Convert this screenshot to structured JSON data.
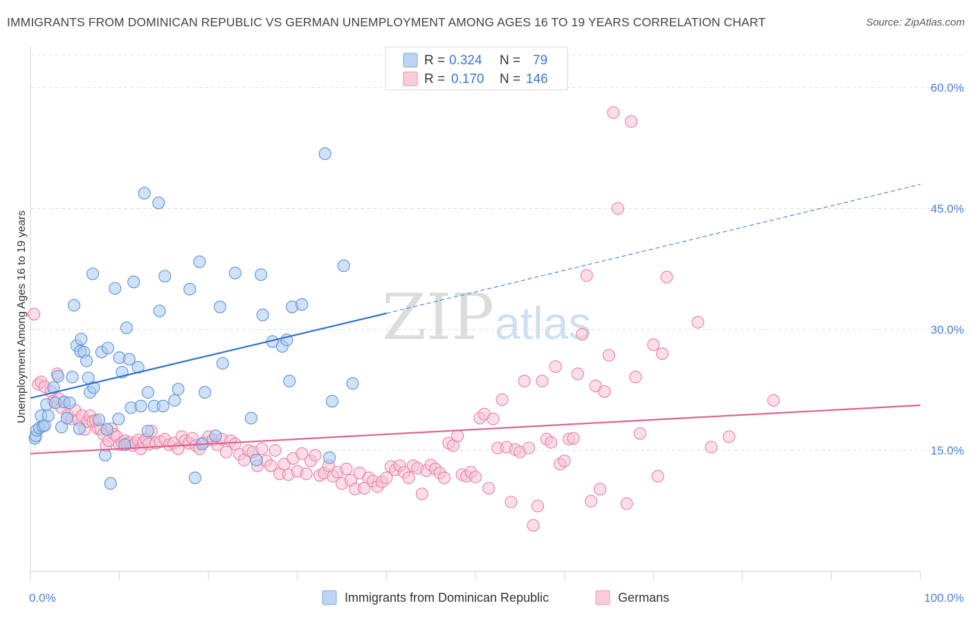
{
  "title": "IMMIGRANTS FROM DOMINICAN REPUBLIC VS GERMAN UNEMPLOYMENT AMONG AGES 16 TO 19 YEARS CORRELATION CHART",
  "source": "Source: ZipAtlas.com",
  "watermark": {
    "zip": "ZIP",
    "atlas": "atlas"
  },
  "legend": {
    "rows": [
      {
        "r_label": "R =",
        "r_value": "0.324",
        "n_label": "N =",
        "n_value": "79",
        "color": "#a9c8f0"
      },
      {
        "r_label": "R =",
        "r_value": "0.170",
        "n_label": "N =",
        "n_value": "146",
        "color": "#f6b8cb"
      }
    ]
  },
  "chart_data": {
    "type": "scatter",
    "title": "IMMIGRANTS FROM DOMINICAN REPUBLIC VS GERMAN UNEMPLOYMENT AMONG AGES 16 TO 19 YEARS CORRELATION CHART",
    "xlabel": "",
    "ylabel": "Unemployment Among Ages 16 to 19 years",
    "xlim": [
      0,
      100
    ],
    "ylim": [
      0,
      64
    ],
    "x_tick_labels": [
      "0.0%",
      "100.0%"
    ],
    "y_ticks": [
      15,
      30,
      45,
      60
    ],
    "y_tick_labels": [
      "15.0%",
      "30.0%",
      "45.0%",
      "60.0%"
    ],
    "grid": "horizontal dashed",
    "legend_position": "top-center",
    "series": [
      {
        "name": "Immigrants from Dominican Republic",
        "color": "#5b8fd8",
        "fill": "#aacbf2",
        "R": 0.324,
        "N": 79,
        "trend": {
          "x0": 0,
          "y0": 21.5,
          "x1": 40,
          "y1": 32.0,
          "dashed_to_x": 100,
          "dashed_to_y": 48.0,
          "color": "#2f6fcf"
        },
        "points": [
          [
            0.5,
            16.5
          ],
          [
            0.6,
            16.8
          ],
          [
            0.7,
            17.5
          ],
          [
            1.0,
            17.8
          ],
          [
            1.2,
            19.3
          ],
          [
            1.4,
            18.0
          ],
          [
            1.6,
            18.1
          ],
          [
            1.8,
            20.7
          ],
          [
            2.0,
            19.3
          ],
          [
            2.6,
            22.8
          ],
          [
            2.8,
            20.9
          ],
          [
            3.1,
            24.2
          ],
          [
            3.5,
            17.9
          ],
          [
            3.8,
            21.0
          ],
          [
            4.1,
            19.0
          ],
          [
            4.4,
            20.9
          ],
          [
            4.7,
            24.1
          ],
          [
            4.9,
            33.0
          ],
          [
            5.2,
            28.0
          ],
          [
            5.5,
            17.7
          ],
          [
            5.6,
            27.3
          ],
          [
            5.7,
            28.8
          ],
          [
            6.0,
            27.2
          ],
          [
            6.3,
            26.1
          ],
          [
            6.5,
            24.0
          ],
          [
            6.7,
            22.2
          ],
          [
            7.1,
            22.8
          ],
          [
            7.0,
            36.9
          ],
          [
            7.7,
            18.8
          ],
          [
            8.0,
            27.2
          ],
          [
            8.4,
            14.4
          ],
          [
            8.7,
            27.7
          ],
          [
            8.6,
            17.6
          ],
          [
            9.0,
            10.9
          ],
          [
            9.5,
            35.1
          ],
          [
            9.9,
            18.9
          ],
          [
            10.0,
            26.5
          ],
          [
            10.3,
            24.7
          ],
          [
            10.6,
            15.7
          ],
          [
            10.8,
            30.2
          ],
          [
            11.1,
            26.3
          ],
          [
            11.3,
            20.3
          ],
          [
            11.6,
            35.9
          ],
          [
            12.1,
            25.3
          ],
          [
            12.4,
            20.5
          ],
          [
            12.8,
            46.9
          ],
          [
            13.2,
            17.4
          ],
          [
            13.2,
            22.2
          ],
          [
            13.9,
            20.5
          ],
          [
            14.4,
            45.7
          ],
          [
            14.5,
            32.3
          ],
          [
            14.9,
            20.5
          ],
          [
            15.1,
            36.6
          ],
          [
            16.2,
            21.2
          ],
          [
            16.6,
            22.6
          ],
          [
            17.9,
            35.0
          ],
          [
            18.5,
            11.6
          ],
          [
            19.0,
            38.4
          ],
          [
            19.3,
            15.8
          ],
          [
            19.6,
            22.2
          ],
          [
            20.8,
            16.8
          ],
          [
            21.3,
            32.8
          ],
          [
            21.6,
            25.8
          ],
          [
            23.0,
            37.0
          ],
          [
            24.8,
            19.0
          ],
          [
            25.4,
            13.8
          ],
          [
            25.9,
            36.8
          ],
          [
            26.1,
            31.8
          ],
          [
            27.2,
            28.5
          ],
          [
            28.3,
            27.9
          ],
          [
            28.8,
            28.7
          ],
          [
            29.1,
            23.6
          ],
          [
            29.4,
            32.8
          ],
          [
            30.5,
            33.1
          ],
          [
            33.1,
            51.8
          ],
          [
            33.6,
            14.1
          ],
          [
            33.9,
            21.1
          ],
          [
            35.2,
            37.9
          ],
          [
            36.2,
            23.3
          ]
        ]
      },
      {
        "name": "Germans",
        "color": "#e77fa2",
        "fill": "#f7c3d3",
        "R": 0.17,
        "N": 146,
        "trend": {
          "x0": 0,
          "y0": 14.6,
          "x1": 100,
          "y1": 20.6,
          "color": "#e0608f"
        },
        "points": [
          [
            0.4,
            31.9
          ],
          [
            0.9,
            23.2
          ],
          [
            1.2,
            23.5
          ],
          [
            1.6,
            22.9
          ],
          [
            2.3,
            22.3
          ],
          [
            2.6,
            21.1
          ],
          [
            3.0,
            24.5
          ],
          [
            3.2,
            21.4
          ],
          [
            3.5,
            20.3
          ],
          [
            3.8,
            21.0
          ],
          [
            4.2,
            19.4
          ],
          [
            4.6,
            18.9
          ],
          [
            5.0,
            20.0
          ],
          [
            5.4,
            18.8
          ],
          [
            5.8,
            19.3
          ],
          [
            6.1,
            17.6
          ],
          [
            6.4,
            18.6
          ],
          [
            6.7,
            19.3
          ],
          [
            7.0,
            18.6
          ],
          [
            7.3,
            18.7
          ],
          [
            7.6,
            17.7
          ],
          [
            7.9,
            17.6
          ],
          [
            8.2,
            17.0
          ],
          [
            8.5,
            15.6
          ],
          [
            8.8,
            16.2
          ],
          [
            9.1,
            17.7
          ],
          [
            9.4,
            17.0
          ],
          [
            9.7,
            16.7
          ],
          [
            10.0,
            15.7
          ],
          [
            10.3,
            15.9
          ],
          [
            10.6,
            16.2
          ],
          [
            10.9,
            15.8
          ],
          [
            11.2,
            16.0
          ],
          [
            11.5,
            15.6
          ],
          [
            11.8,
            15.9
          ],
          [
            12.1,
            16.3
          ],
          [
            12.4,
            15.2
          ],
          [
            12.7,
            16.0
          ],
          [
            13.0,
            16.4
          ],
          [
            13.3,
            15.8
          ],
          [
            13.6,
            17.4
          ],
          [
            14.1,
            15.9
          ],
          [
            14.6,
            16.1
          ],
          [
            15.1,
            16.4
          ],
          [
            15.6,
            15.7
          ],
          [
            16.1,
            15.9
          ],
          [
            16.6,
            15.2
          ],
          [
            17.0,
            16.7
          ],
          [
            17.4,
            16.2
          ],
          [
            17.8,
            15.9
          ],
          [
            18.2,
            16.5
          ],
          [
            18.6,
            15.6
          ],
          [
            19.0,
            15.2
          ],
          [
            19.5,
            16.0
          ],
          [
            20.0,
            16.7
          ],
          [
            20.5,
            16.3
          ],
          [
            21.0,
            15.7
          ],
          [
            21.5,
            16.4
          ],
          [
            22.0,
            14.8
          ],
          [
            22.5,
            16.2
          ],
          [
            23.0,
            15.8
          ],
          [
            23.5,
            14.5
          ],
          [
            24.0,
            13.8
          ],
          [
            24.5,
            15.0
          ],
          [
            25.0,
            14.8
          ],
          [
            25.5,
            13.1
          ],
          [
            26.0,
            15.2
          ],
          [
            26.5,
            13.7
          ],
          [
            27.0,
            13.1
          ],
          [
            27.5,
            15.0
          ],
          [
            28.0,
            12.1
          ],
          [
            28.5,
            13.3
          ],
          [
            29.0,
            12.0
          ],
          [
            29.5,
            14.0
          ],
          [
            30.0,
            12.4
          ],
          [
            30.5,
            14.6
          ],
          [
            31.0,
            12.1
          ],
          [
            31.5,
            13.7
          ],
          [
            32.0,
            14.4
          ],
          [
            32.5,
            11.9
          ],
          [
            33.0,
            12.2
          ],
          [
            33.5,
            13.1
          ],
          [
            34.0,
            11.8
          ],
          [
            34.5,
            12.3
          ],
          [
            35.0,
            10.9
          ],
          [
            35.5,
            12.7
          ],
          [
            36.0,
            11.3
          ],
          [
            36.5,
            10.2
          ],
          [
            37.0,
            12.2
          ],
          [
            37.5,
            10.3
          ],
          [
            38.0,
            11.6
          ],
          [
            38.5,
            11.2
          ],
          [
            39.0,
            10.5
          ],
          [
            39.5,
            11.1
          ],
          [
            40.0,
            11.6
          ],
          [
            40.5,
            13.0
          ],
          [
            41.0,
            12.6
          ],
          [
            41.5,
            13.1
          ],
          [
            42.0,
            12.3
          ],
          [
            42.5,
            11.6
          ],
          [
            43.0,
            13.1
          ],
          [
            43.5,
            12.8
          ],
          [
            44.0,
            9.6
          ],
          [
            44.5,
            12.5
          ],
          [
            45.0,
            13.2
          ],
          [
            45.5,
            12.7
          ],
          [
            46.0,
            12.2
          ],
          [
            46.5,
            11.6
          ],
          [
            47.0,
            15.9
          ],
          [
            47.5,
            15.6
          ],
          [
            48.0,
            16.8
          ],
          [
            48.5,
            12.0
          ],
          [
            49.0,
            11.8
          ],
          [
            49.5,
            12.3
          ],
          [
            50.0,
            11.7
          ],
          [
            50.5,
            19.0
          ],
          [
            51.0,
            19.5
          ],
          [
            51.5,
            10.3
          ],
          [
            52.0,
            18.9
          ],
          [
            52.5,
            15.3
          ],
          [
            53.0,
            21.3
          ],
          [
            53.5,
            15.4
          ],
          [
            54.0,
            8.6
          ],
          [
            54.5,
            15.1
          ],
          [
            55.0,
            14.8
          ],
          [
            55.5,
            23.6
          ],
          [
            56.0,
            15.3
          ],
          [
            56.5,
            5.7
          ],
          [
            57.0,
            8.1
          ],
          [
            57.5,
            23.6
          ],
          [
            58.0,
            16.4
          ],
          [
            58.5,
            16.0
          ],
          [
            59.0,
            25.4
          ],
          [
            59.5,
            13.3
          ],
          [
            60.0,
            13.7
          ],
          [
            60.5,
            16.4
          ],
          [
            61.0,
            16.5
          ],
          [
            61.5,
            24.5
          ],
          [
            62.0,
            29.4
          ],
          [
            62.5,
            36.7
          ],
          [
            63.0,
            8.7
          ],
          [
            63.5,
            23.0
          ],
          [
            64.0,
            10.2
          ],
          [
            64.5,
            22.3
          ],
          [
            65.0,
            26.8
          ],
          [
            65.5,
            56.9
          ],
          [
            66.0,
            45.0
          ],
          [
            67.0,
            8.4
          ],
          [
            67.5,
            55.8
          ],
          [
            68.0,
            24.1
          ],
          [
            68.5,
            17.1
          ],
          [
            70.0,
            28.1
          ],
          [
            70.5,
            11.8
          ],
          [
            71.0,
            27.0
          ],
          [
            71.5,
            36.5
          ],
          [
            75.0,
            30.9
          ],
          [
            76.5,
            15.4
          ],
          [
            78.5,
            16.7
          ],
          [
            83.5,
            21.2
          ]
        ]
      }
    ]
  },
  "bottom_legend": [
    {
      "label": "Immigrants from Dominican Republic",
      "color": "#a9c8f0"
    },
    {
      "label": "Germans",
      "color": "#f6b8cb"
    }
  ]
}
